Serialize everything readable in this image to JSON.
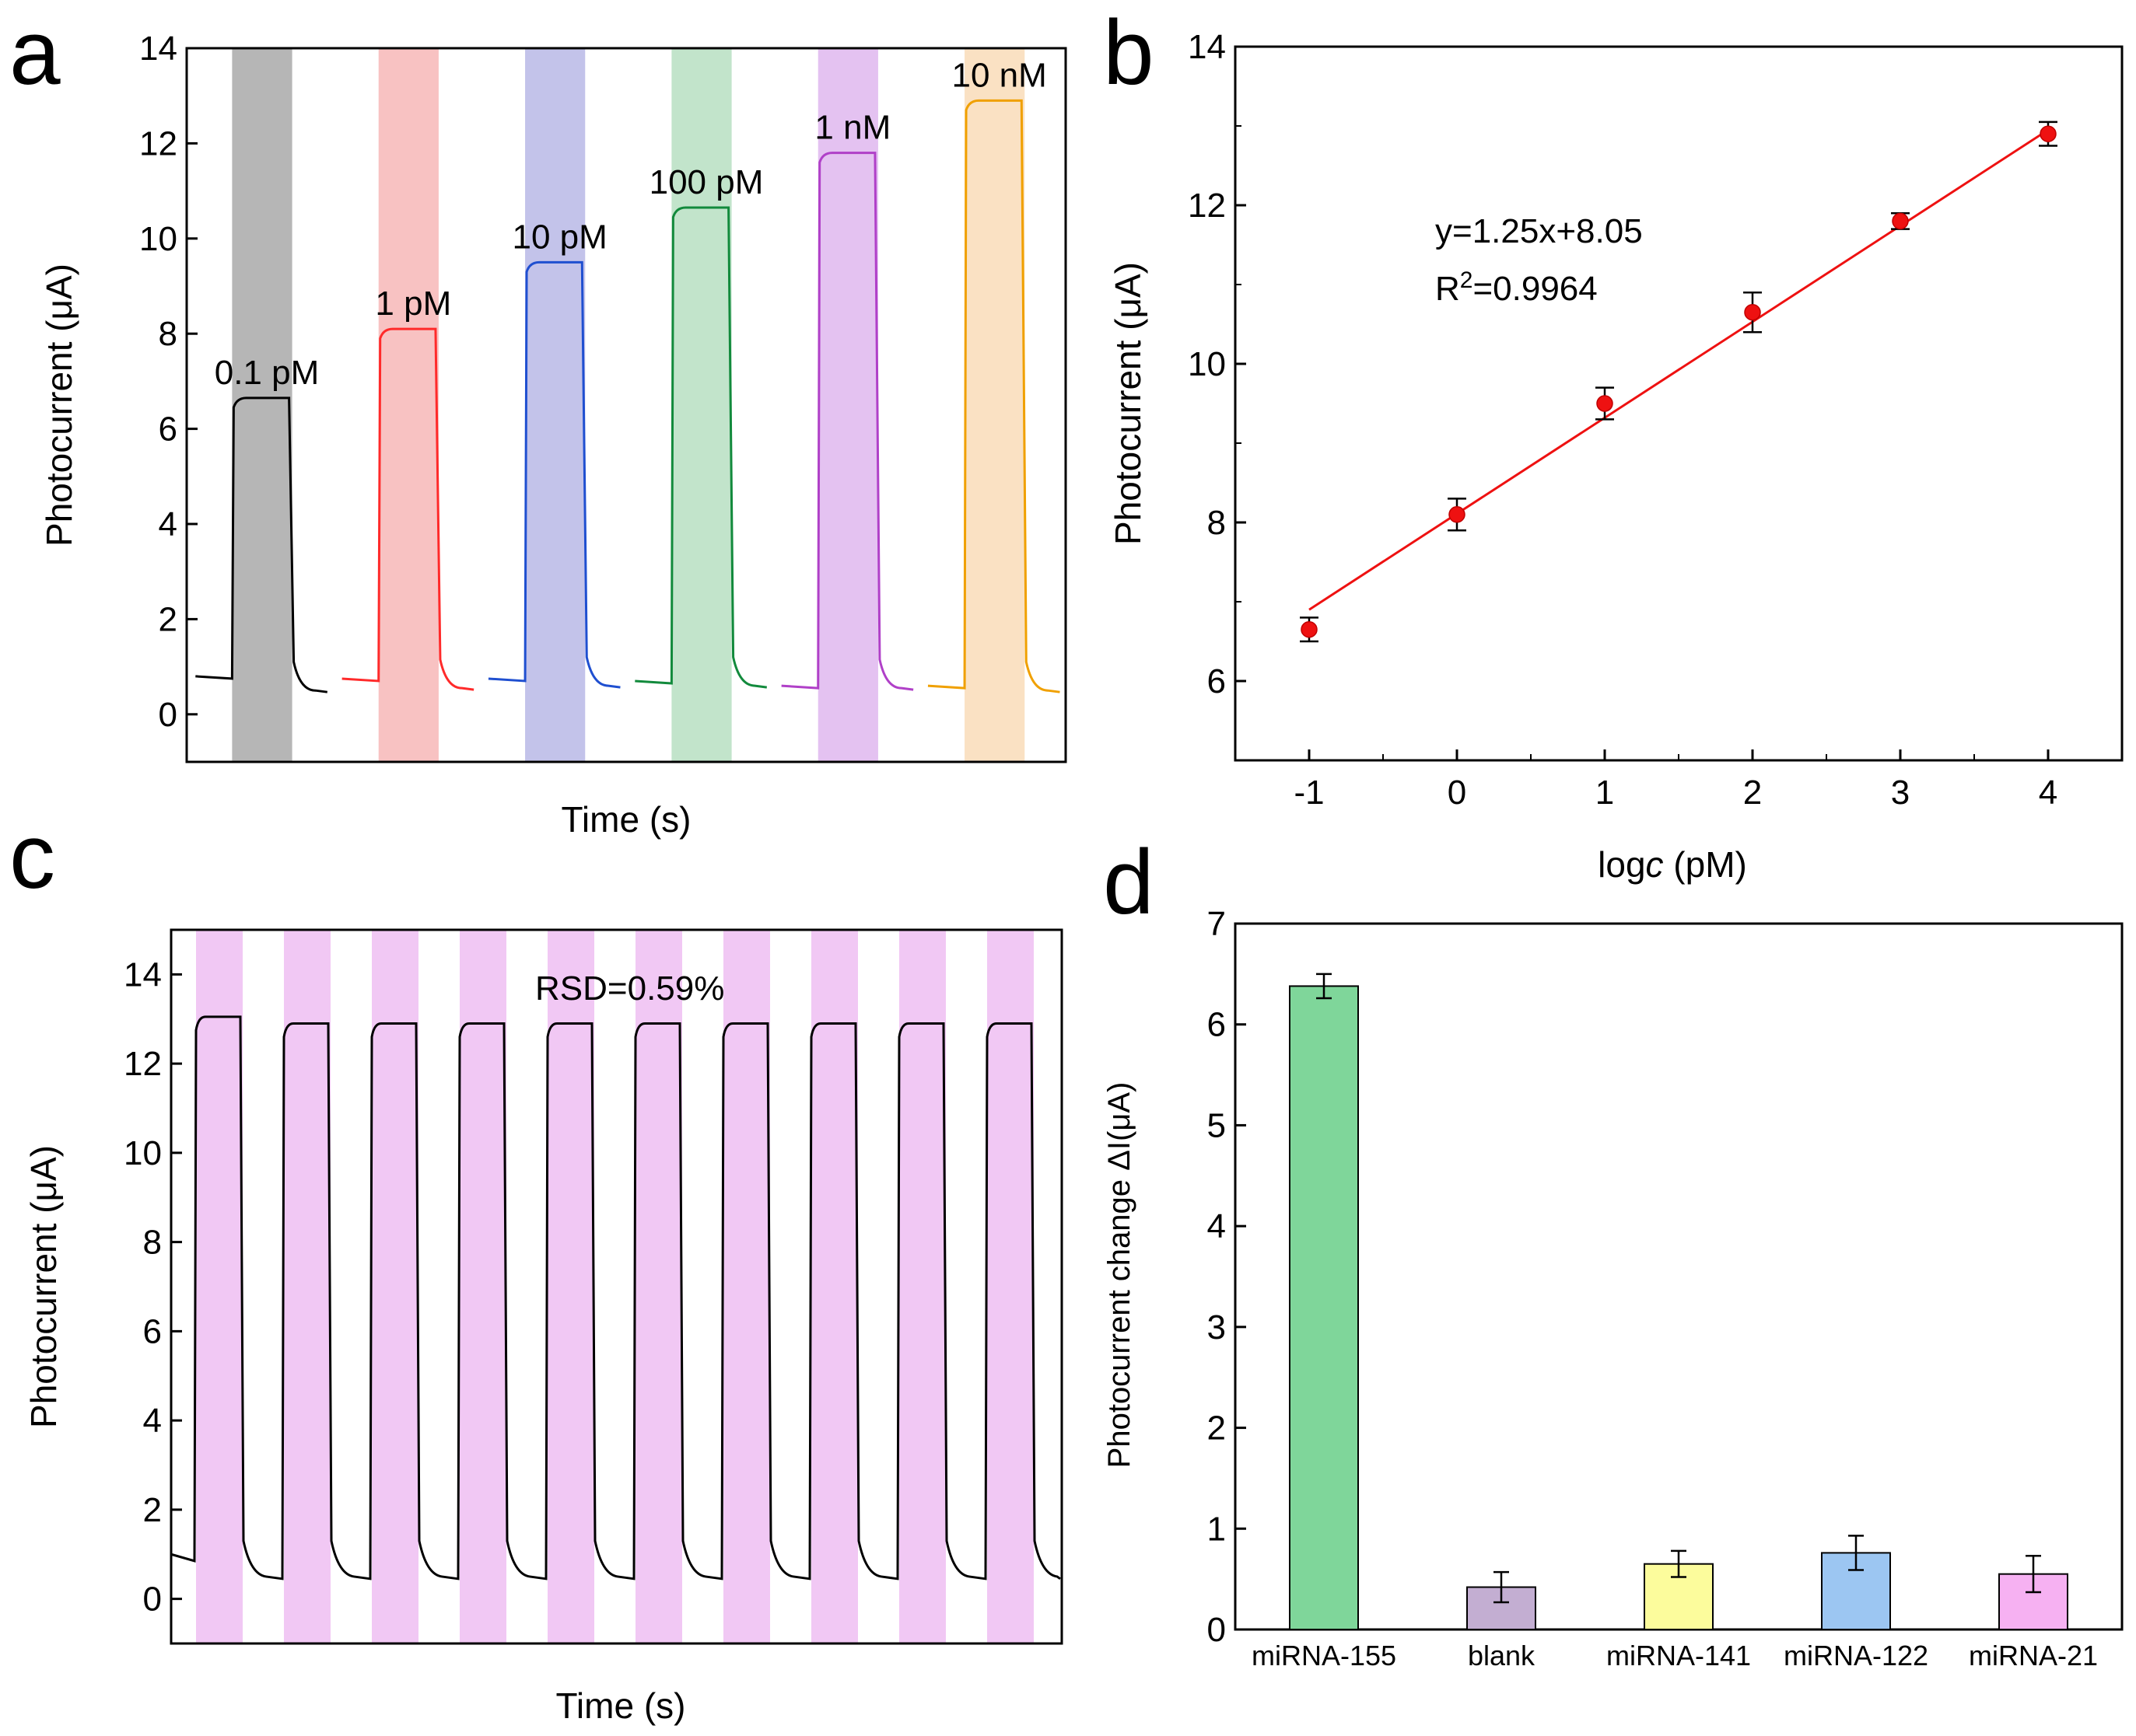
{
  "figure": {
    "panels": [
      "a",
      "b",
      "c",
      "d"
    ]
  },
  "chart_data": [
    {
      "panel": "a",
      "type": "line",
      "title": "",
      "xlabel": "Time (s)",
      "ylabel": "Photocurrent (μA)",
      "ylim": [
        -1,
        14
      ],
      "yticks": [
        "0",
        "2",
        "4",
        "6",
        "8",
        "10",
        "12",
        "14"
      ],
      "xticks": [],
      "series": [
        {
          "name": "0.1 pM",
          "color": "#000000",
          "band_color": "#a9a9a9",
          "baseline_before": 0.75,
          "on_value": 6.65,
          "baseline_after": 0.5
        },
        {
          "name": "1 pM",
          "color": "#ff2a2a",
          "band_color": "#f7b7b7",
          "baseline_before": 0.7,
          "on_value": 8.1,
          "baseline_after": 0.55
        },
        {
          "name": "10 pM",
          "color": "#1f4fd0",
          "band_color": "#b9b9e6",
          "baseline_before": 0.7,
          "on_value": 9.5,
          "baseline_after": 0.6
        },
        {
          "name": "100 pM",
          "color": "#128a3c",
          "band_color": "#b7dfc2",
          "baseline_before": 0.65,
          "on_value": 10.65,
          "baseline_after": 0.6
        },
        {
          "name": "1 nM",
          "color": "#b040c8",
          "band_color": "#dfb7ee",
          "baseline_before": 0.55,
          "on_value": 11.8,
          "baseline_after": 0.55
        },
        {
          "name": "10 nM",
          "color": "#f0a000",
          "band_color": "#f9dcb8",
          "baseline_before": 0.55,
          "on_value": 12.9,
          "baseline_after": 0.5
        }
      ]
    },
    {
      "panel": "b",
      "type": "scatter",
      "title": "",
      "xlabel": "logc (pM)",
      "xlabel_parts": {
        "pre": "log",
        "italic": "c",
        "post": " (pM)"
      },
      "ylabel": "Photocurrent (μA)",
      "xlim": [
        -1.5,
        4.5
      ],
      "ylim": [
        5,
        14
      ],
      "xticks": [
        "-1",
        "0",
        "1",
        "2",
        "3",
        "4"
      ],
      "yticks": [
        "6",
        "8",
        "10",
        "12",
        "14"
      ],
      "x": [
        -1,
        0,
        1,
        2,
        3,
        4
      ],
      "y": [
        6.65,
        8.1,
        9.5,
        10.65,
        11.8,
        12.9
      ],
      "err": [
        0.15,
        0.2,
        0.2,
        0.25,
        0.1,
        0.15
      ],
      "fit": {
        "slope": 1.25,
        "intercept": 8.05
      },
      "equation": "y=1.25x+8.05",
      "r2": {
        "pre": "R",
        "sup": "2",
        "post": "=0.9964"
      },
      "marker_color": "#ee1111",
      "line_color": "#ee1111"
    },
    {
      "panel": "c",
      "type": "line",
      "title": "",
      "xlabel": "Time (s)",
      "ylabel": "Photocurrent (μA)",
      "ylim": [
        -1,
        15
      ],
      "yticks": [
        "0",
        "2",
        "4",
        "6",
        "8",
        "10",
        "12",
        "14"
      ],
      "annotation": "RSD=0.59%",
      "cycles": 10,
      "on_values": [
        13.05,
        12.9,
        12.9,
        12.9,
        12.9,
        12.9,
        12.9,
        12.9,
        12.9,
        12.9
      ],
      "off_value": 0.5,
      "start_value": 1.0,
      "line_color": "#000000",
      "band_color": "#f1c8f4"
    },
    {
      "panel": "d",
      "type": "bar",
      "title": "",
      "xlabel": "",
      "ylabel": "Photocurrent change ΔI(μA)",
      "ylim": [
        0,
        7
      ],
      "yticks": [
        "0",
        "1",
        "2",
        "3",
        "4",
        "5",
        "6",
        "7"
      ],
      "categories": [
        "miRNA-155",
        "blank",
        "miRNA-141",
        "miRNA-122",
        "miRNA-21"
      ],
      "values": [
        6.38,
        0.42,
        0.65,
        0.76,
        0.55
      ],
      "errors": [
        0.12,
        0.15,
        0.13,
        0.17,
        0.18
      ],
      "colors": [
        "#7fd69a",
        "#c3aed2",
        "#fcfc9c",
        "#9cc6f2",
        "#f6b1f2"
      ]
    }
  ]
}
